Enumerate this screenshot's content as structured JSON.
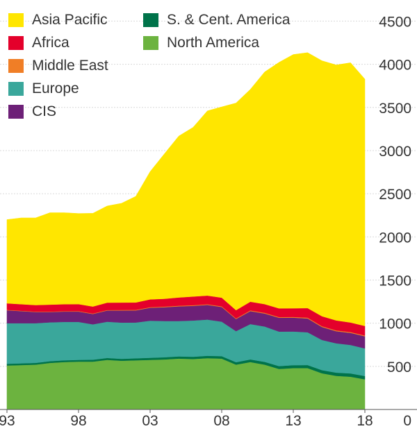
{
  "chart_data": {
    "type": "area",
    "stacked": true,
    "title": "",
    "xlabel": "",
    "ylabel": "",
    "x": [
      1993,
      1994,
      1995,
      1996,
      1997,
      1998,
      1999,
      2000,
      2001,
      2002,
      2003,
      2004,
      2005,
      2006,
      2007,
      2008,
      2009,
      2010,
      2011,
      2012,
      2013,
      2014,
      2015,
      2016,
      2017,
      2018
    ],
    "x_tick_labels": [
      "93",
      "98",
      "03",
      "08",
      "13",
      "18"
    ],
    "x_tick_values": [
      1993,
      1998,
      2003,
      2008,
      2013,
      2018
    ],
    "y_tick_labels": [
      "0",
      "500",
      "1000",
      "1500",
      "2000",
      "2500",
      "3000",
      "3500",
      "4000",
      "4500"
    ],
    "y_tick_values": [
      0,
      500,
      1000,
      1500,
      2000,
      2500,
      3000,
      3500,
      4000,
      4500
    ],
    "ylim": [
      0,
      4600
    ],
    "y_axis_position": "right",
    "grid": true,
    "legend_position": "top-left",
    "series": [
      {
        "name": "North America",
        "color": "#6cb33f",
        "values": [
          510,
          515,
          520,
          540,
          550,
          555,
          555,
          575,
          565,
          570,
          575,
          580,
          590,
          585,
          595,
          590,
          520,
          550,
          520,
          470,
          480,
          480,
          420,
          390,
          380,
          350
        ]
      },
      {
        "name": "S. & Cent. America",
        "color": "#00734a",
        "values": [
          20,
          20,
          20,
          20,
          20,
          20,
          22,
          22,
          22,
          23,
          24,
          25,
          25,
          26,
          27,
          28,
          28,
          30,
          32,
          33,
          34,
          35,
          36,
          37,
          38,
          38
        ]
      },
      {
        "name": "Europe",
        "color": "#3aa79b",
        "values": [
          470,
          465,
          460,
          450,
          445,
          440,
          410,
          420,
          420,
          415,
          430,
          420,
          410,
          420,
          420,
          400,
          360,
          410,
          410,
          400,
          390,
          380,
          350,
          340,
          330,
          320
        ]
      },
      {
        "name": "CIS",
        "color": "#6d2077",
        "values": [
          150,
          140,
          130,
          120,
          120,
          120,
          120,
          130,
          140,
          140,
          150,
          160,
          170,
          170,
          170,
          170,
          140,
          150,
          150,
          160,
          160,
          160,
          150,
          140,
          140,
          140
        ]
      },
      {
        "name": "Middle East",
        "color": "#f07e26",
        "values": [
          5,
          5,
          5,
          5,
          5,
          6,
          6,
          6,
          7,
          7,
          7,
          8,
          8,
          8,
          8,
          8,
          8,
          9,
          9,
          9,
          9,
          10,
          10,
          10,
          10,
          10
        ]
      },
      {
        "name": "Africa",
        "color": "#e4002b",
        "values": [
          75,
          75,
          75,
          80,
          80,
          80,
          80,
          85,
          85,
          85,
          90,
          90,
          95,
          100,
          100,
          100,
          95,
          100,
          100,
          100,
          100,
          110,
          115,
          115,
          110,
          110
        ]
      },
      {
        "name": "Asia Pacific",
        "color": "#ffe600",
        "values": [
          970,
          1000,
          1010,
          1065,
          1060,
          1050,
          1080,
          1120,
          1150,
          1230,
          1480,
          1680,
          1870,
          1960,
          2140,
          2210,
          2400,
          2460,
          2690,
          2850,
          2940,
          2960,
          2960,
          2960,
          3010,
          2860
        ]
      }
    ],
    "legend": [
      {
        "name": "Asia Pacific",
        "color": "#ffe600"
      },
      {
        "name": "Africa",
        "color": "#e4002b"
      },
      {
        "name": "Middle East",
        "color": "#f07e26"
      },
      {
        "name": "Europe",
        "color": "#3aa79b"
      },
      {
        "name": "CIS",
        "color": "#6d2077"
      },
      {
        "name": "S. & Cent. America",
        "color": "#00734a"
      },
      {
        "name": "North America",
        "color": "#6cb33f"
      }
    ]
  }
}
